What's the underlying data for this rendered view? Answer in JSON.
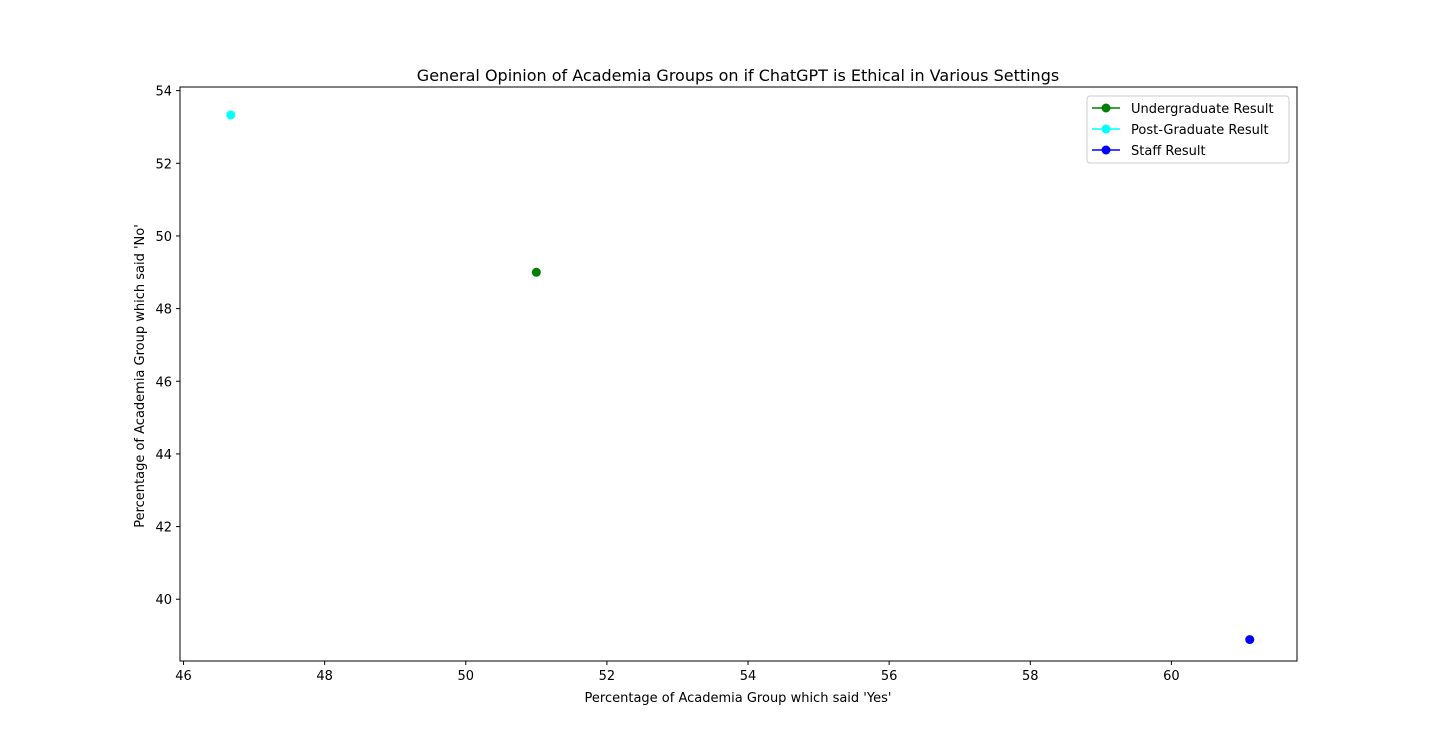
{
  "chart_data": {
    "type": "scatter",
    "title": "General Opinion of Academia Groups on if ChatGPT is Ethical in Various Settings",
    "xlabel": "Percentage of Academia Group which said 'Yes'",
    "ylabel": "Percentage of Academia Group which said 'No'",
    "xlim": [
      45.95,
      61.78
    ],
    "ylim": [
      38.3,
      54.1
    ],
    "xticks": [
      46,
      48,
      50,
      52,
      54,
      56,
      58,
      60
    ],
    "yticks": [
      40,
      42,
      44,
      46,
      48,
      50,
      52,
      54
    ],
    "grid": false,
    "legend_position": "top-right",
    "series": [
      {
        "name": "Undergraduate Result",
        "color": "#008000",
        "x": [
          51.0
        ],
        "y": [
          49.0
        ]
      },
      {
        "name": "Post-Graduate Result",
        "color": "#00ffff",
        "x": [
          46.67
        ],
        "y": [
          53.33
        ]
      },
      {
        "name": "Staff Result",
        "color": "#0000ff",
        "x": [
          61.11
        ],
        "y": [
          38.89
        ]
      }
    ]
  }
}
